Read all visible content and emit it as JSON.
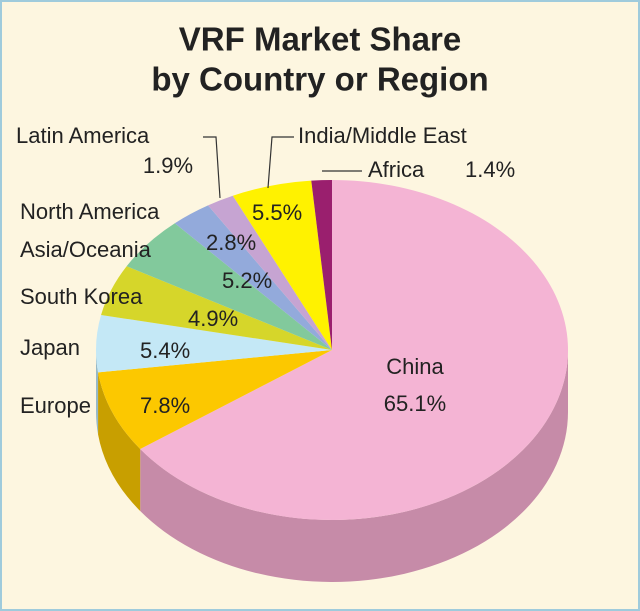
{
  "chart_data": {
    "type": "pie",
    "title": [
      "VRF Market Share",
      "by Country or Region"
    ],
    "categories": [
      "China",
      "Europe",
      "Japan",
      "South Korea",
      "Asia/Oceania",
      "North America",
      "Latin America",
      "India/Middle East",
      "Africa"
    ],
    "values": [
      65.1,
      7.8,
      5.4,
      4.9,
      5.2,
      2.8,
      1.9,
      5.5,
      1.4
    ],
    "value_labels": [
      "65.1%",
      "7.8%",
      "5.4%",
      "4.9%",
      "5.2%",
      "2.8%",
      "1.9%",
      "5.5%",
      "1.4%"
    ],
    "colors": [
      "#f4b4d4",
      "#fcc800",
      "#c4e8f6",
      "#d6d62a",
      "#82c99c",
      "#93aadb",
      "#c6a4d2",
      "#fff200",
      "#9a1f6e"
    ],
    "side_colors": [
      "#c68ba8",
      "#c89f00",
      "#97b9c6",
      "#a8a81c",
      "#5e9e74",
      "#6b82ad",
      "#9a7ca6",
      "#c9bf00",
      "#6e1450"
    ]
  }
}
